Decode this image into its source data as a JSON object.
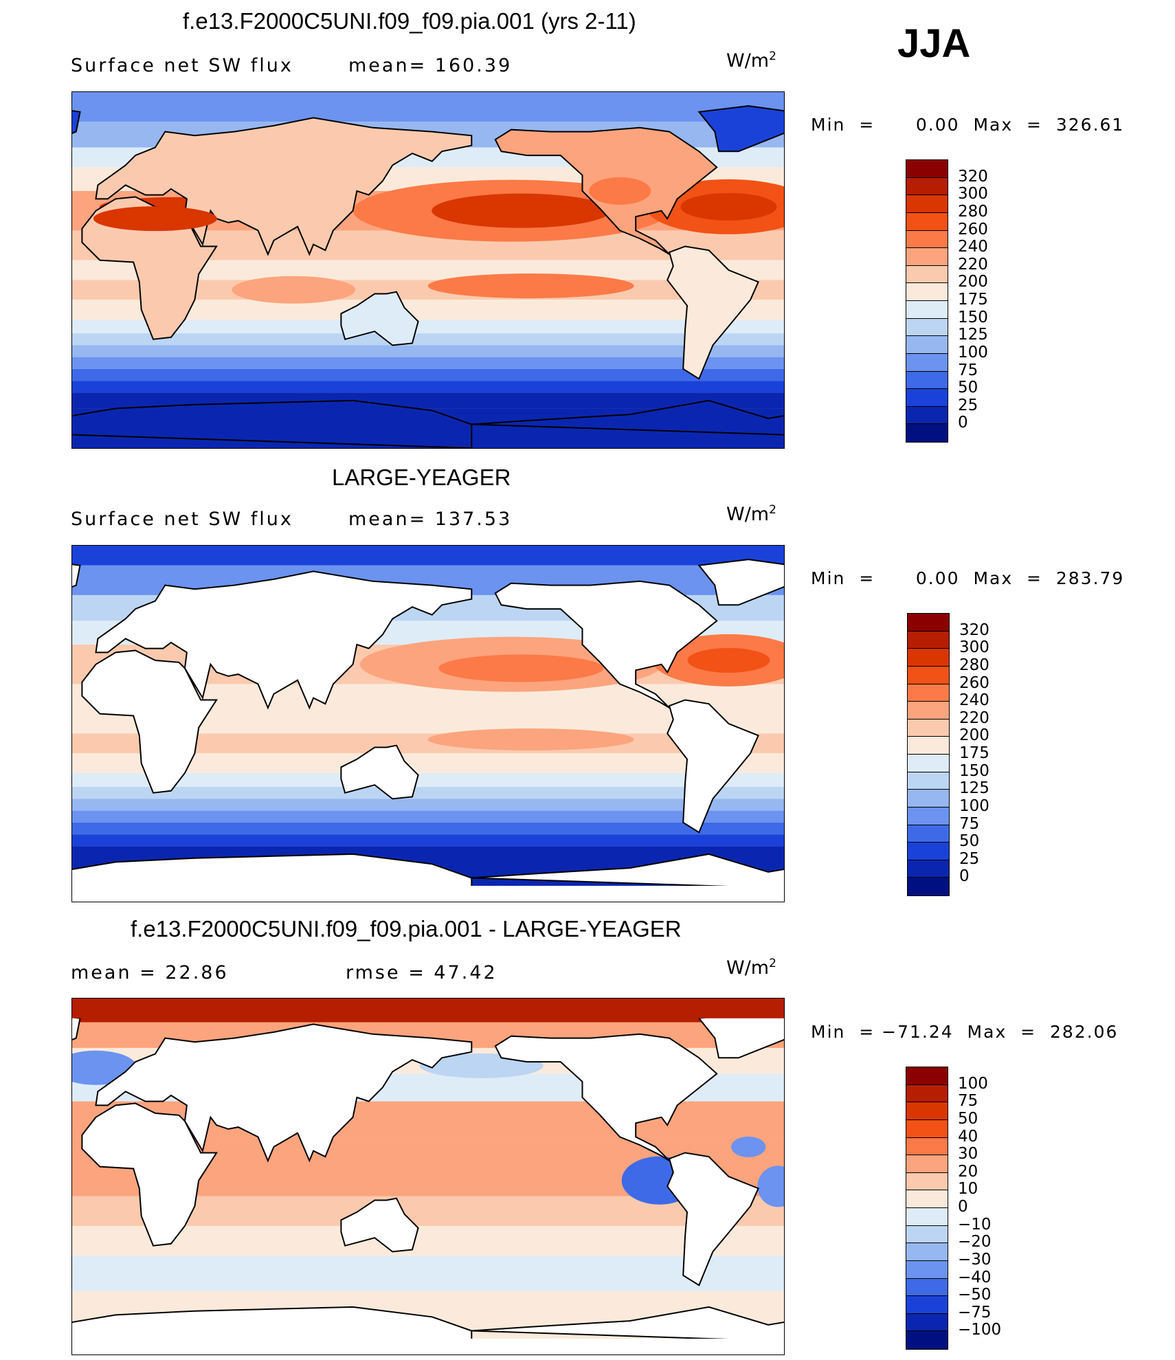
{
  "season": "JJA",
  "panels": [
    {
      "title": "f.e13.F2000C5UNI.f09_f09.pia.001 (yrs 2-11)",
      "left_label": "Surface net SW flux",
      "right_label": "mean=  160.39",
      "units": "W/m",
      "units_sup": "2",
      "minmax": "Min  =      0.00  Max  =  326.61",
      "colorbar": {
        "levels": [
          "320",
          "300",
          "280",
          "260",
          "240",
          "220",
          "200",
          "175",
          "150",
          "125",
          "100",
          "75",
          "50",
          "25",
          "0"
        ],
        "colors": [
          "#8b0000",
          "#b51e00",
          "#d93600",
          "#f25216",
          "#fb7a48",
          "#fca47e",
          "#fbcaae",
          "#fbeadb",
          "#deecf8",
          "#bcd5f3",
          "#96b7f0",
          "#6b93ef",
          "#3e6ae8",
          "#1b42d8",
          "#0a26b0",
          "#001080"
        ]
      }
    },
    {
      "title": "LARGE-YEAGER",
      "left_label": "Surface net SW flux",
      "right_label": "mean=  137.53",
      "units": "W/m",
      "units_sup": "2",
      "minmax": "Min  =      0.00  Max  =  283.79",
      "colorbar": {
        "levels": [
          "320",
          "300",
          "280",
          "260",
          "240",
          "220",
          "200",
          "175",
          "150",
          "125",
          "100",
          "75",
          "50",
          "25",
          "0"
        ],
        "colors": [
          "#8b0000",
          "#b51e00",
          "#d93600",
          "#f25216",
          "#fb7a48",
          "#fca47e",
          "#fbcaae",
          "#fbeadb",
          "#deecf8",
          "#bcd5f3",
          "#96b7f0",
          "#6b93ef",
          "#3e6ae8",
          "#1b42d8",
          "#0a26b0",
          "#001080"
        ]
      }
    },
    {
      "title": "f.e13.F2000C5UNI.f09_f09.pia.001 - LARGE-YEAGER",
      "left_label": "mean  =    22.86",
      "right_label": "rmse  =    47.42",
      "units": "W/m",
      "units_sup": "2",
      "minmax": "Min  = −71.24  Max  =  282.06",
      "colorbar": {
        "levels": [
          "100",
          "75",
          "50",
          "40",
          "30",
          "20",
          "10",
          "0",
          "−10",
          "−20",
          "−30",
          "−40",
          "−50",
          "−75",
          "−100"
        ],
        "colors": [
          "#8b0000",
          "#b51e00",
          "#d93600",
          "#f25216",
          "#fb7a48",
          "#fca47e",
          "#fbcaae",
          "#fbeadb",
          "#deecf8",
          "#bcd5f3",
          "#96b7f0",
          "#6b93ef",
          "#3e6ae8",
          "#1b42d8",
          "#0a26b0",
          "#001080"
        ]
      }
    }
  ],
  "chart_data": [
    {
      "type": "heatmap",
      "title": "f.e13.F2000C5UNI.f09_f09.pia.001 (yrs 2-11)",
      "variable": "Surface net SW flux",
      "season": "JJA",
      "units": "W/m2",
      "mean": 160.39,
      "min": 0.0,
      "max": 326.61,
      "contour_levels": [
        0,
        25,
        50,
        75,
        100,
        125,
        150,
        175,
        200,
        220,
        240,
        260,
        280,
        300,
        320
      ],
      "projection": "cylindrical equidistant, Pacific-centred"
    },
    {
      "type": "heatmap",
      "title": "LARGE-YEAGER",
      "variable": "Surface net SW flux",
      "season": "JJA",
      "units": "W/m2",
      "mean": 137.53,
      "min": 0.0,
      "max": 283.79,
      "contour_levels": [
        0,
        25,
        50,
        75,
        100,
        125,
        150,
        175,
        200,
        220,
        240,
        260,
        280,
        300,
        320
      ],
      "land_masked": true
    },
    {
      "type": "heatmap",
      "title": "f.e13.F2000C5UNI.f09_f09.pia.001 - LARGE-YEAGER",
      "variable": "Surface net SW flux difference",
      "season": "JJA",
      "units": "W/m2",
      "mean": 22.86,
      "rmse": 47.42,
      "min": -71.24,
      "max": 282.06,
      "contour_levels": [
        -100,
        -75,
        -50,
        -40,
        -30,
        -20,
        -10,
        0,
        10,
        20,
        30,
        40,
        50,
        75,
        100
      ],
      "land_masked": true
    }
  ]
}
